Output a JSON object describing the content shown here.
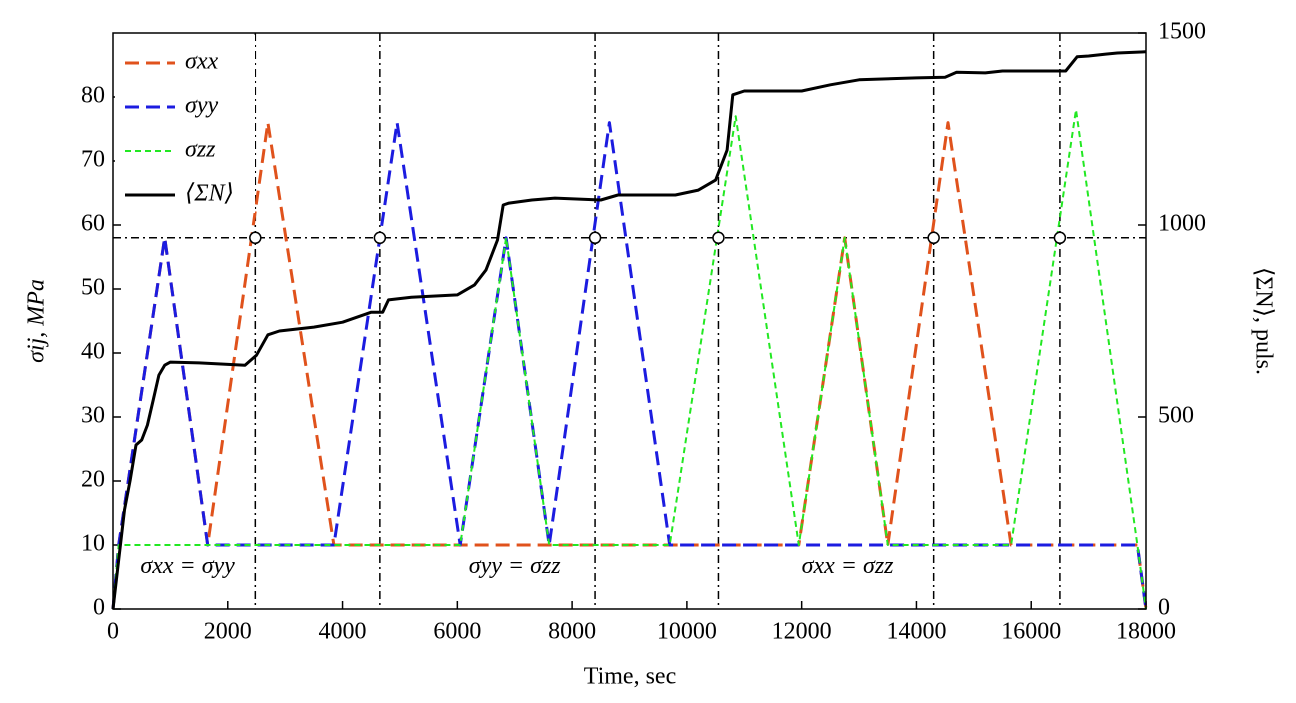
{
  "chart_data": {
    "type": "line",
    "xlabel": "Time, sec",
    "ylabel": "σij, MPa",
    "y2label": "⟨ΣN⟩, puls.",
    "xlim": [
      0,
      18000
    ],
    "xticks": [
      0,
      2000,
      4000,
      6000,
      8000,
      10000,
      12000,
      14000,
      16000,
      18000
    ],
    "ylim": [
      0,
      90
    ],
    "yticks": [
      0,
      10,
      20,
      30,
      40,
      50,
      60,
      70,
      80
    ],
    "y2lim": [
      0,
      1500
    ],
    "y2ticks": [
      0,
      500,
      1000,
      1500
    ],
    "legend": "upper left",
    "series": [
      {
        "name": "σxx",
        "color": "#e0521c",
        "style": "dashed",
        "x": [
          0,
          100,
          900,
          1650,
          2700,
          3850,
          11950,
          12750,
          13500,
          14550,
          15650,
          17850,
          18000
        ],
        "values": [
          0,
          10,
          58,
          10,
          76,
          10,
          10,
          58,
          10,
          76,
          10,
          10,
          0
        ]
      },
      {
        "name": "σyy",
        "color": "#1c1ce0",
        "style": "dashed",
        "x": [
          0,
          100,
          900,
          1650,
          3850,
          4950,
          6050,
          6850,
          7600,
          8650,
          9700,
          17850,
          18000
        ],
        "values": [
          0,
          10,
          58,
          10,
          10,
          76,
          10,
          58,
          10,
          76,
          10,
          10,
          0
        ]
      },
      {
        "name": "σzz",
        "color": "#22e822",
        "style": "dotted",
        "x": [
          0,
          100,
          6050,
          6850,
          7600,
          9700,
          10850,
          11950,
          12750,
          13500,
          15650,
          16780,
          17850,
          18000
        ],
        "values": [
          0,
          10,
          10,
          58,
          10,
          10,
          77,
          10,
          58,
          10,
          10,
          78,
          10,
          0
        ]
      },
      {
        "name": "⟨ΣN⟩",
        "color": "#000000",
        "style": "solid",
        "axis": "y2",
        "x": [
          0,
          100,
          200,
          300,
          400,
          500,
          600,
          700,
          800,
          900,
          1000,
          1500,
          2300,
          2500,
          2700,
          2900,
          3500,
          4000,
          4500,
          4700,
          4800,
          5200,
          6000,
          6300,
          6500,
          6700,
          6800,
          6900,
          7300,
          7700,
          8500,
          8800,
          9800,
          10200,
          10500,
          10700,
          10800,
          11000,
          12000,
          12500,
          13000,
          14000,
          14500,
          14700,
          15200,
          15500,
          16600,
          16800,
          17000,
          17300,
          17500,
          18000
        ],
        "values": [
          0,
          128,
          258,
          336,
          427,
          440,
          479,
          544,
          609,
          635,
          643,
          641,
          635,
          661,
          714,
          724,
          734,
          747,
          773,
          773,
          805,
          812,
          818,
          844,
          883,
          961,
          1052,
          1057,
          1065,
          1070,
          1065,
          1078,
          1078,
          1091,
          1117,
          1195,
          1339,
          1349,
          1349,
          1365,
          1378,
          1383,
          1385,
          1398,
          1396,
          1401,
          1401,
          1438,
          1440,
          1445,
          1448,
          1451
        ]
      }
    ],
    "reference_lines": {
      "x": [
        2480,
        4650,
        8400,
        10550,
        14300,
        16500
      ],
      "y": 58
    },
    "annotations": [
      "σxx = σyy",
      "σyy = σzz",
      "σxx = σzz"
    ]
  }
}
